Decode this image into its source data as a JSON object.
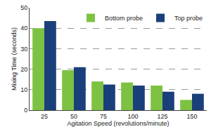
{
  "chart_data": {
    "type": "bar",
    "categories": [
      "25",
      "50",
      "75",
      "100",
      "125",
      "150"
    ],
    "series": [
      {
        "name": "Bottom probe",
        "color": "#7dc242",
        "values": [
          40,
          19.5,
          14,
          13.5,
          12,
          5
        ]
      },
      {
        "name": "Top probe",
        "color": "#1b3f7a",
        "values": [
          43.5,
          21,
          12.5,
          12,
          9,
          8
        ]
      }
    ],
    "xlabel": "Agitation Speed (revolutions/minute)",
    "ylabel": "Mixing Time (seconds)",
    "ylim": [
      0,
      50
    ],
    "yticks": [
      0,
      10,
      20,
      30,
      40,
      50
    ],
    "grid": true,
    "legend": "upper right"
  }
}
